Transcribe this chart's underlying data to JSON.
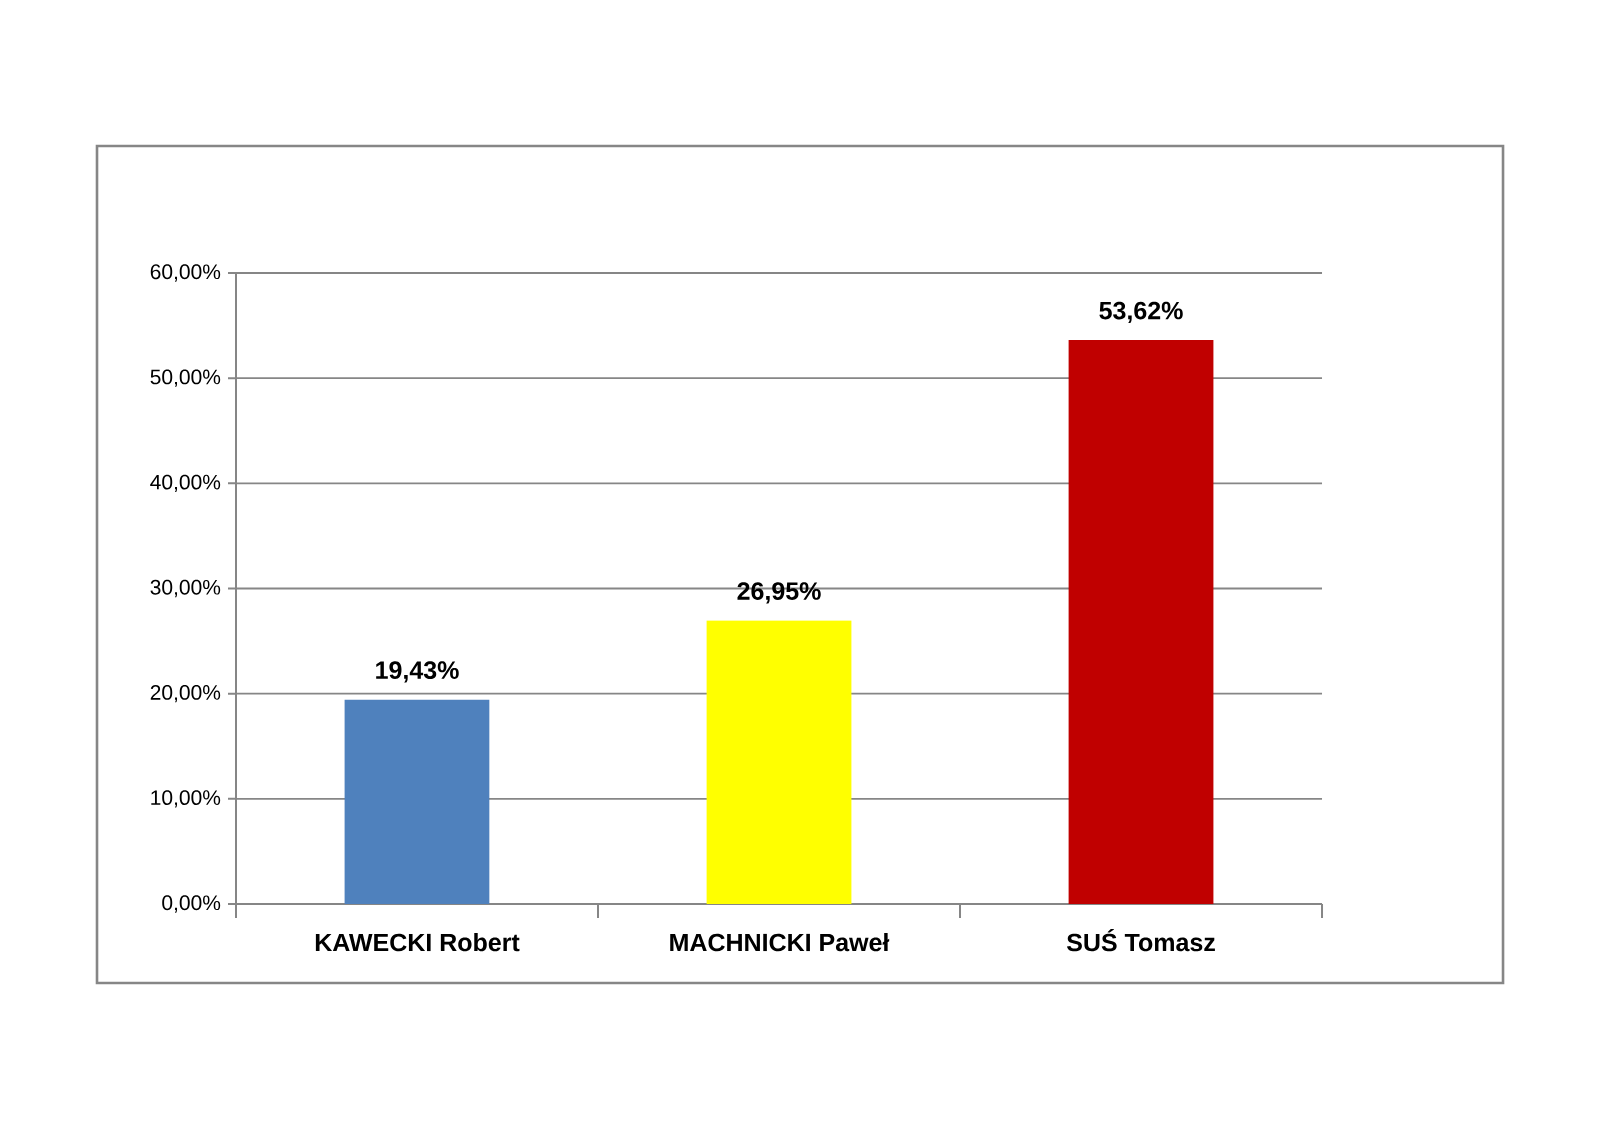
{
  "chart_data": {
    "type": "bar",
    "categories": [
      "KAWECKI Robert",
      "MACHNICKI Paweł",
      "SUŚ Tomasz"
    ],
    "values": [
      19.43,
      26.95,
      53.62
    ],
    "colors": [
      "#4f81bd",
      "#ffff00",
      "#c00000"
    ],
    "value_labels": [
      "19,43%",
      "26,95%",
      "53,62%"
    ],
    "ylim": [
      0,
      60
    ],
    "yticks": [
      {
        "value": 0,
        "label": "0,00%"
      },
      {
        "value": 10,
        "label": "10,00%"
      },
      {
        "value": 20,
        "label": "20,00%"
      },
      {
        "value": 30,
        "label": "30,00%"
      },
      {
        "value": 40,
        "label": "40,00%"
      },
      {
        "value": 50,
        "label": "50,00%"
      },
      {
        "value": 60,
        "label": "60,00%"
      }
    ],
    "grid": "y"
  }
}
